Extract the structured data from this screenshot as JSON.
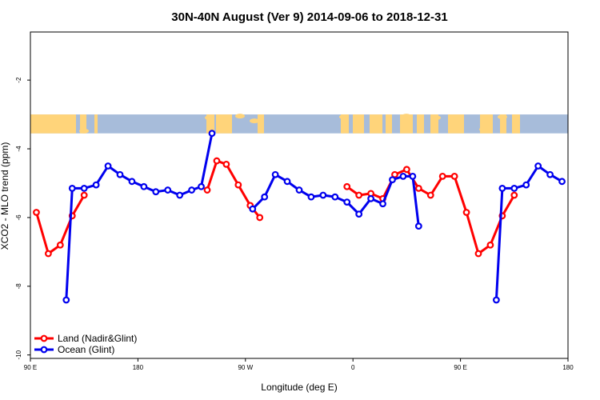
{
  "chart_data": {
    "type": "line",
    "title": "30N-40N August (Ver 9)   2014-09-06 to 2018-12-31",
    "xlabel": "Longitude (deg E)",
    "ylabel": "XCO2 - MLO trend (ppm)",
    "x_axis": {
      "ticks": [
        {
          "value": 90,
          "label": "90 E"
        },
        {
          "value": 180,
          "label": "180"
        },
        {
          "value": 270,
          "label": "90 W"
        },
        {
          "value": 360,
          "label": "0"
        },
        {
          "value": 450,
          "label": "90 E"
        },
        {
          "value": 540,
          "label": "180"
        }
      ],
      "xlim": [
        90,
        540
      ]
    },
    "y_axis": {
      "ticks": [
        -2,
        -4,
        -6,
        -8,
        -10
      ],
      "ylim": [
        -10.1,
        -0.6
      ]
    },
    "map_band": {
      "y_top": -3.0,
      "y_bottom": -3.55,
      "land_color": "#ffd47a",
      "ocean_color": "#a7bcda"
    },
    "series": [
      {
        "name": "Land (Nadir&Glint)",
        "color": "#ff0000",
        "segments": [
          [
            [
              95,
              -5.85
            ],
            [
              105,
              -7.05
            ],
            [
              115,
              -6.8
            ],
            [
              125,
              -5.95
            ],
            [
              135,
              -5.35
            ]
          ],
          [
            [
              238,
              -5.2
            ],
            [
              246,
              -4.35
            ],
            [
              254,
              -4.45
            ],
            [
              264,
              -5.05
            ],
            [
              274,
              -5.65
            ],
            [
              282,
              -6.0
            ]
          ],
          [
            [
              355,
              -5.1
            ],
            [
              365,
              -5.35
            ],
            [
              375,
              -5.3
            ],
            [
              385,
              -5.45
            ],
            [
              395,
              -4.75
            ],
            [
              405,
              -4.6
            ],
            [
              415,
              -5.15
            ],
            [
              425,
              -5.35
            ],
            [
              435,
              -4.8
            ],
            [
              445,
              -4.8
            ],
            [
              455,
              -5.85
            ],
            [
              465,
              -7.05
            ],
            [
              475,
              -6.8
            ],
            [
              485,
              -5.95
            ],
            [
              495,
              -5.35
            ]
          ]
        ]
      },
      {
        "name": "Ocean (Glint)",
        "color": "#0000ee",
        "segments": [
          [
            [
              120,
              -8.4
            ],
            [
              125,
              -5.15
            ],
            [
              135,
              -5.15
            ],
            [
              145,
              -5.05
            ],
            [
              155,
              -4.5
            ],
            [
              165,
              -4.75
            ],
            [
              175,
              -4.95
            ],
            [
              185,
              -5.1
            ],
            [
              195,
              -5.25
            ],
            [
              205,
              -5.2
            ],
            [
              215,
              -5.35
            ],
            [
              225,
              -5.2
            ],
            [
              233,
              -5.1
            ],
            [
              242,
              -3.55
            ]
          ],
          [
            [
              276,
              -5.75
            ],
            [
              286,
              -5.4
            ],
            [
              295,
              -4.75
            ],
            [
              305,
              -4.95
            ],
            [
              315,
              -5.2
            ],
            [
              325,
              -5.4
            ],
            [
              335,
              -5.35
            ],
            [
              345,
              -5.4
            ],
            [
              355,
              -5.55
            ],
            [
              365,
              -5.9
            ],
            [
              375,
              -5.45
            ],
            [
              385,
              -5.6
            ],
            [
              393,
              -4.9
            ],
            [
              402,
              -4.8
            ],
            [
              410,
              -4.8
            ],
            [
              415,
              -6.25
            ]
          ],
          [
            [
              480,
              -8.4
            ],
            [
              485,
              -5.15
            ],
            [
              495,
              -5.15
            ],
            [
              505,
              -5.05
            ],
            [
              515,
              -4.5
            ],
            [
              525,
              -4.75
            ],
            [
              535,
              -4.95
            ]
          ]
        ]
      }
    ],
    "legend": {
      "position": "bottom-left"
    },
    "grid": false
  }
}
